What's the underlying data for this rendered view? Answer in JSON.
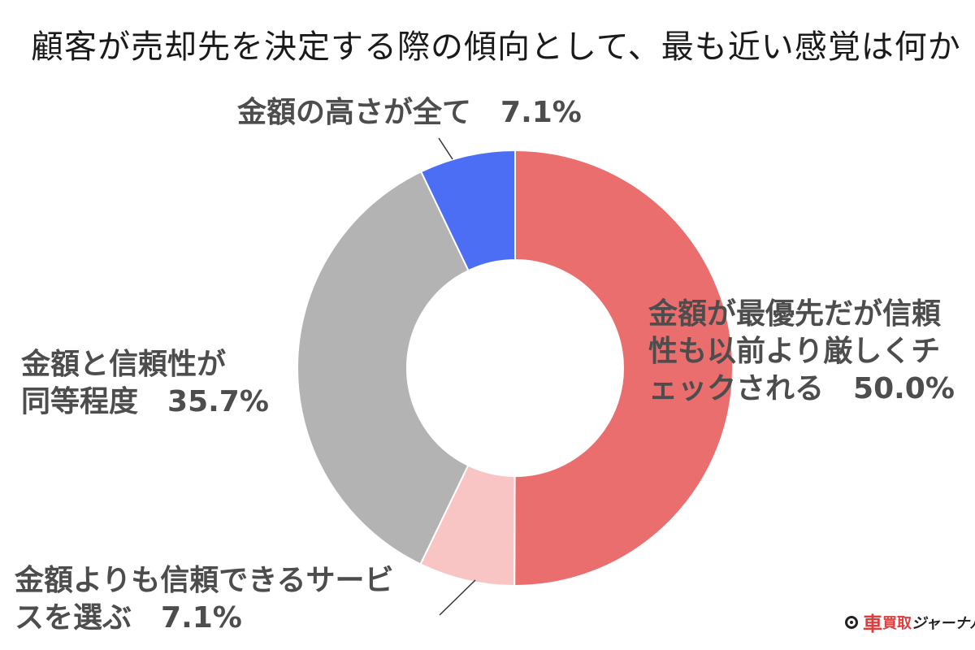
{
  "chart_data": {
    "type": "pie",
    "title": "顧客が売却先を決定する際の傾向として、最も近い感覚は何か",
    "donut": true,
    "start": "top",
    "direction": "clockwise",
    "slices": [
      {
        "label": "金額が最優先だが信頼性も以前より厳しくチェックされる",
        "value": 50.0,
        "value_label": "50.0%",
        "color": "#ea6e6e"
      },
      {
        "label": "金額よりも信頼できるサービスを選ぶ",
        "value": 7.1,
        "value_label": "7.1%",
        "color": "#f9c4c4"
      },
      {
        "label": "金額と信頼性が同等程度",
        "value": 35.7,
        "value_label": "35.7%",
        "color": "#b3b3b3"
      },
      {
        "label": "金額の高さが全て",
        "value": 7.1,
        "value_label": "7.1%",
        "color": "#4c6ef5"
      }
    ]
  },
  "labels": {
    "a": {
      "line1": "金額の高さが全て",
      "value": "7.1%"
    },
    "b": {
      "line1": "金額が最優先だが信頼",
      "line2": "性も以前より厳しくチ",
      "line3": "ェックされる",
      "value": "50.0%"
    },
    "c": {
      "line1": "金額よりも信頼できるサービ",
      "line2": "スを選ぶ",
      "value": "7.1%"
    },
    "d": {
      "line1": "金額と信頼性が",
      "line2": "同等程度",
      "value": "35.7%"
    }
  },
  "credit": {
    "part1": "車",
    "part2": "買取",
    "part3": "ジャーナル"
  }
}
